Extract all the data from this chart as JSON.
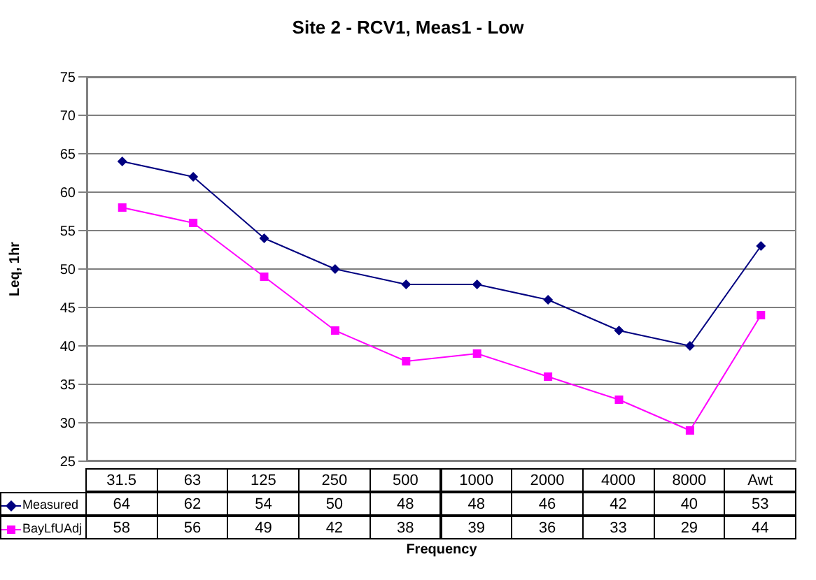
{
  "chart_data": {
    "type": "line",
    "title": "Site 2 - RCV1, Meas1 - Low",
    "xlabel": "Frequency",
    "ylabel": "Leq, 1hr",
    "categories": [
      "31.5",
      "63",
      "125",
      "250",
      "500",
      "1000",
      "2000",
      "4000",
      "8000",
      "Awt"
    ],
    "series": [
      {
        "name": "Measured",
        "color": "#000080",
        "marker": "diamond",
        "values": [
          64,
          62,
          54,
          50,
          48,
          48,
          46,
          42,
          40,
          53
        ]
      },
      {
        "name": "BayLfUAdj",
        "color": "#ff00ff",
        "marker": "square",
        "values": [
          58,
          56,
          49,
          42,
          38,
          39,
          36,
          33,
          29,
          44
        ]
      }
    ],
    "ylim": [
      25,
      75
    ],
    "yticks": [
      25,
      30,
      35,
      40,
      45,
      50,
      55,
      60,
      65,
      70,
      75
    ],
    "grid": "y",
    "data_labels": true,
    "legend": "bottom"
  }
}
